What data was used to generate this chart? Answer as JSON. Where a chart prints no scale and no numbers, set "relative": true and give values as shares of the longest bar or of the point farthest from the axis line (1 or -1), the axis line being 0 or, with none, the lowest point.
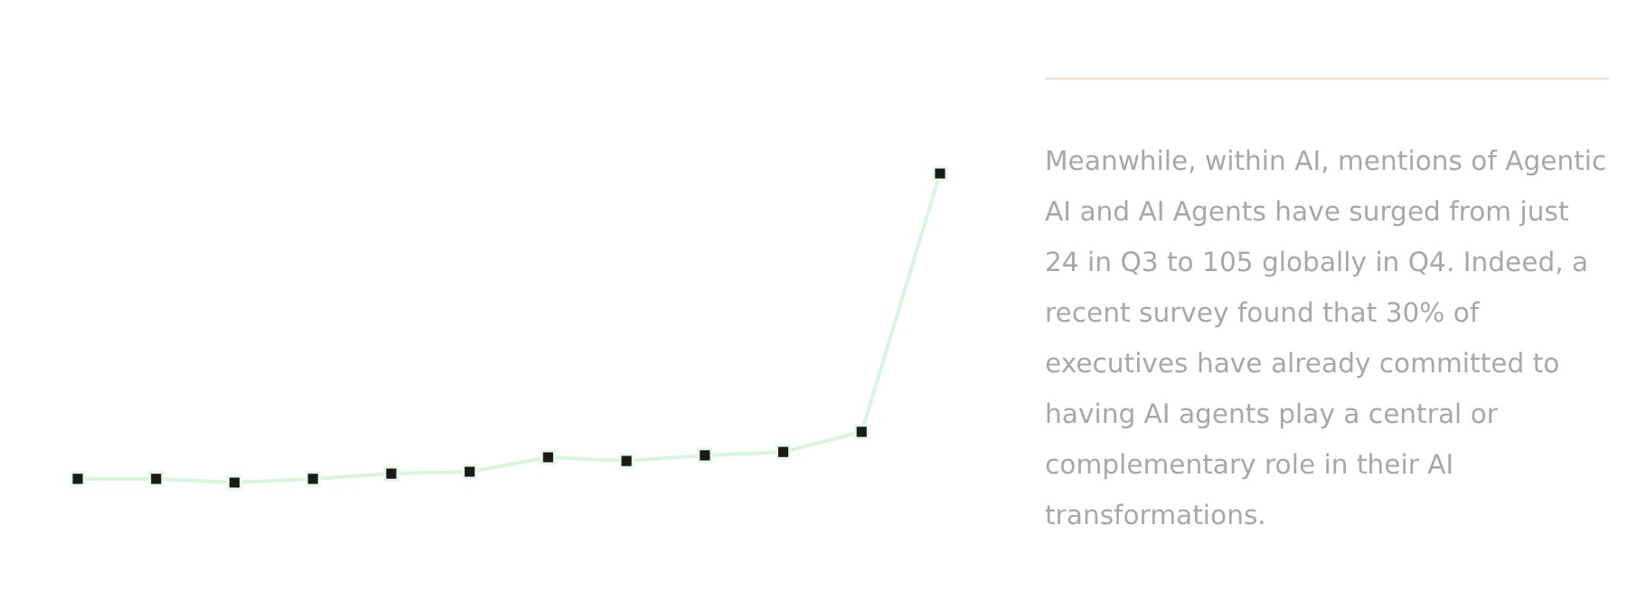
{
  "chart_data": {
    "type": "line",
    "relative": true,
    "categories": [
      null,
      null,
      null,
      null,
      null,
      null,
      null,
      null,
      null,
      null,
      null,
      null
    ],
    "series": [
      {
        "color": "#d8f5df",
        "values": [
          0.012,
          0.012,
          0,
          0.012,
          0.029,
          0.035,
          0.082,
          0.07,
          0.088,
          0.099,
          0.164,
          1
        ]
      }
    ],
    "marker": "square",
    "line_style": "solid",
    "legend": false,
    "annotations": [
      "Meanwhile, within AI, mentions of Agentic AI and AI Agents have surged from just 24 in Q3 to 105 globally in Q4. Indeed, a recent survey found that 30% of executives have already committed to having AI agents play a central or complementary role in their AI transformations."
    ]
  }
}
